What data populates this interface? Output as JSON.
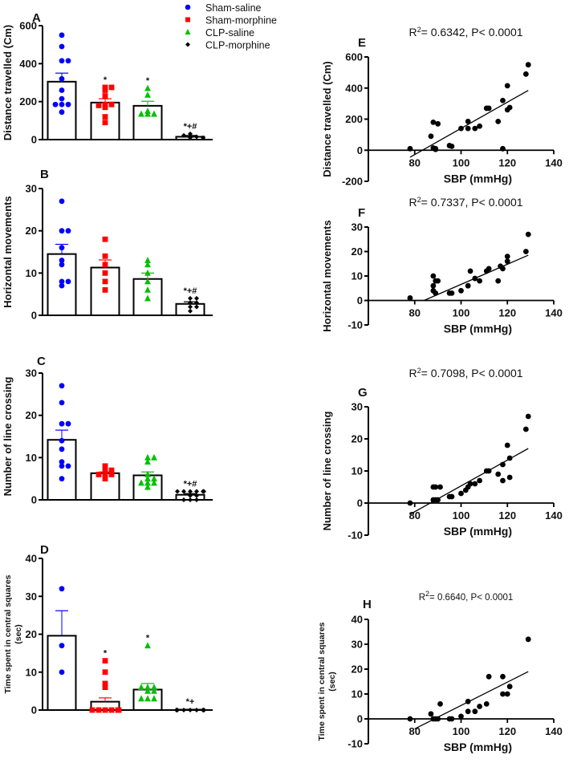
{
  "legend": [
    {
      "label": "Sham-saline",
      "color": "#0000FF",
      "marker": "circle"
    },
    {
      "label": "Sham-morphine",
      "color": "#FF0000",
      "marker": "square"
    },
    {
      "label": "CLP-saline",
      "color": "#00C000",
      "marker": "triangle"
    },
    {
      "label": "CLP-morphine",
      "color": "#000000",
      "marker": "diamond"
    }
  ],
  "chart_data": [
    {
      "panel": "A",
      "type": "bar",
      "ylabel": "Distance travelled (Cm)",
      "ylim": [
        0,
        600
      ],
      "yticks": [
        "0",
        "200",
        "400",
        "600"
      ],
      "categories": [
        "Sham-saline",
        "Sham-morphine",
        "CLP-saline",
        "CLP-morphine"
      ],
      "means": [
        305,
        195,
        178,
        15
      ],
      "sem_upper": [
        350,
        215,
        202,
        22
      ],
      "annotations": [
        "",
        "*",
        "*",
        "*+#"
      ],
      "points": [
        [
          550,
          490,
          415,
          415,
          320,
          260,
          215,
          185,
          185,
          185,
          145
        ],
        [
          275,
          275,
          260,
          230,
          185,
          185,
          180,
          170,
          120,
          90
        ],
        [
          270,
          235,
          150,
          135,
          135,
          135
        ],
        [
          10,
          30,
          15,
          22,
          10
        ]
      ]
    },
    {
      "panel": "B",
      "type": "bar",
      "ylabel": "Horizontal movements",
      "ylim": [
        0,
        30
      ],
      "yticks": [
        "0",
        "10",
        "20",
        "30"
      ],
      "categories": [
        "Sham-saline",
        "Sham-morphine",
        "CLP-saline",
        "CLP-morphine"
      ],
      "means": [
        14.5,
        11.3,
        8.6,
        2.7
      ],
      "sem_upper": [
        16.8,
        13.1,
        10.0,
        3.2
      ],
      "annotations": [
        "",
        "",
        "",
        "*+#"
      ],
      "points": [
        [
          27,
          20,
          20,
          16,
          13,
          12,
          8,
          8,
          7
        ],
        [
          18,
          14,
          12,
          10,
          8,
          6
        ],
        [
          13,
          12,
          10,
          8,
          6,
          4
        ],
        [
          4,
          4,
          3,
          3,
          2,
          2,
          1
        ]
      ]
    },
    {
      "panel": "C",
      "type": "bar",
      "ylabel": "Number of line crossing",
      "ylim": [
        0,
        30
      ],
      "yticks": [
        "0",
        "10",
        "20",
        "30"
      ],
      "categories": [
        "Sham-saline",
        "Sham-morphine",
        "CLP-saline",
        "CLP-morphine"
      ],
      "means": [
        14.2,
        6.3,
        5.8,
        1.2
      ],
      "sem_upper": [
        16.5,
        6.6,
        6.6,
        1.5
      ],
      "annotations": [
        "",
        "",
        "",
        "*+#"
      ],
      "points": [
        [
          27,
          23,
          18,
          18,
          14,
          12,
          9,
          8,
          8,
          5
        ],
        [
          8,
          7,
          7,
          6,
          6,
          6,
          5
        ],
        [
          10,
          10,
          9,
          6,
          5,
          5,
          4,
          4,
          4,
          3
        ],
        [
          2,
          2,
          2,
          2,
          2,
          2,
          1,
          1,
          0,
          0,
          0
        ]
      ]
    },
    {
      "panel": "D",
      "type": "bar",
      "ylabel": "Time spent in central squares (sec)",
      "ylabel_lines": [
        "Time spent in central squares",
        "(sec)"
      ],
      "ylim": [
        0,
        40
      ],
      "yticks": [
        "0",
        "10",
        "20",
        "30",
        "40"
      ],
      "categories": [
        "Sham-saline",
        "Sham-morphine",
        "CLP-saline",
        "CLP-morphine"
      ],
      "means": [
        19.6,
        2.2,
        5.4,
        0.1
      ],
      "sem_upper": [
        26.2,
        3.2,
        7.0,
        0.2
      ],
      "annotations": [
        "",
        "*",
        "*",
        "*+"
      ],
      "points": [
        [
          32,
          17,
          10
        ],
        [
          13,
          10,
          7,
          6,
          0,
          0,
          0,
          0,
          0,
          0
        ],
        [
          17,
          6,
          6,
          5,
          6,
          5,
          3,
          3,
          3
        ],
        [
          0,
          0,
          0,
          0,
          0,
          0,
          0,
          0,
          0,
          0
        ]
      ]
    },
    {
      "panel": "E",
      "type": "scatter",
      "title": "R2= 0.6342, P< 0.0001",
      "title_parts": [
        "R",
        "2",
        "= 0.6342, P< 0.0001"
      ],
      "xlabel": "SBP (mmHg)",
      "ylabel": "Distance travelled (Cm)",
      "xlim": [
        60,
        140
      ],
      "ylim": [
        -200,
        600
      ],
      "xticks": [
        "80",
        "100",
        "120",
        "140"
      ],
      "yticks": [
        "-200",
        "0",
        "200",
        "400",
        "600"
      ],
      "x": [
        78,
        87,
        88,
        88,
        89,
        89,
        90,
        95,
        96,
        100,
        103,
        103,
        106,
        108,
        111,
        112,
        116,
        118,
        118,
        120,
        120,
        121,
        128,
        129
      ],
      "y": [
        10,
        90,
        180,
        15,
        10,
        5,
        170,
        30,
        25,
        140,
        185,
        140,
        140,
        155,
        270,
        270,
        185,
        320,
        10,
        415,
        260,
        275,
        490,
        550
      ],
      "fit": [
        [
          78,
          -45
        ],
        [
          129,
          385
        ]
      ]
    },
    {
      "panel": "F",
      "type": "scatter",
      "title": "R2= 0.7337, P< 0.0001",
      "title_parts": [
        "R",
        "2",
        "= 0.7337, P< 0.0001"
      ],
      "xlabel": "SBP (mmHg)",
      "ylabel": "Horizontal movements",
      "xlim": [
        60,
        140
      ],
      "ylim": [
        -10,
        30
      ],
      "xticks": [
        "80",
        "100",
        "120",
        "140"
      ],
      "yticks": [
        "-10",
        "0",
        "10",
        "20",
        "30"
      ],
      "x": [
        78,
        88,
        88,
        88,
        89,
        89,
        90,
        95,
        96,
        100,
        103,
        104,
        106,
        108,
        111,
        112,
        116,
        117,
        118,
        120,
        120,
        128,
        129
      ],
      "y": [
        1,
        10,
        6,
        4,
        3,
        8,
        8,
        3,
        3,
        4,
        6,
        12,
        9,
        8,
        12,
        13,
        8,
        14,
        13,
        16,
        18,
        20,
        27
      ],
      "fit": [
        [
          84,
          0
        ],
        [
          129,
          18.5
        ]
      ]
    },
    {
      "panel": "G",
      "type": "scatter",
      "title": "R2= 0.7098, P< 0.0001",
      "title_parts": [
        "R",
        "2",
        "= 0.7098, P< 0.0001"
      ],
      "xlabel": "SBP (mmHg)",
      "ylabel": "Number of line crossing",
      "xlim": [
        60,
        140
      ],
      "ylim": [
        -10,
        30
      ],
      "xticks": [
        "80",
        "100",
        "120",
        "140"
      ],
      "yticks": [
        "-10",
        "0",
        "10",
        "20",
        "30"
      ],
      "x": [
        78,
        88,
        89,
        88,
        89,
        90,
        91,
        95,
        96,
        100,
        102,
        103,
        104,
        106,
        108,
        111,
        112,
        116,
        118,
        118,
        120,
        121,
        121,
        128,
        129
      ],
      "y": [
        0,
        5,
        5,
        1,
        1,
        1,
        5,
        2,
        2,
        3,
        4,
        5,
        6,
        6,
        7,
        10,
        10,
        9,
        7,
        12,
        18,
        14,
        8,
        23,
        27
      ],
      "fit": [
        [
          78,
          -3.5
        ],
        [
          129,
          17
        ]
      ]
    },
    {
      "panel": "H",
      "type": "scatter",
      "title": "R2= 0.6640, P< 0.0001",
      "title_parts": [
        "R",
        "2",
        "= 0.6640, P< 0.0001"
      ],
      "xlabel": "SBP (mmHg)",
      "ylabel": "Time spent in central squares (sec)",
      "ylabel_lines": [
        "Time spent in central squares",
        "(sec)"
      ],
      "xlim": [
        60,
        140
      ],
      "ylim": [
        -10,
        40
      ],
      "xticks": [
        "80",
        "100",
        "120",
        "140"
      ],
      "yticks": [
        "-10",
        "0",
        "10",
        "20",
        "30",
        "40"
      ],
      "x": [
        78,
        87,
        88,
        89,
        90,
        91,
        95,
        96,
        100,
        103,
        103,
        106,
        108,
        111,
        112,
        118,
        118,
        120,
        121,
        129
      ],
      "y": [
        0,
        2,
        0,
        0,
        0,
        6,
        0,
        0,
        1,
        7,
        3,
        3,
        5,
        6,
        17,
        17,
        10,
        10,
        13,
        32
      ],
      "fit": [
        [
          80,
          -4
        ],
        [
          129,
          19
        ]
      ]
    }
  ]
}
